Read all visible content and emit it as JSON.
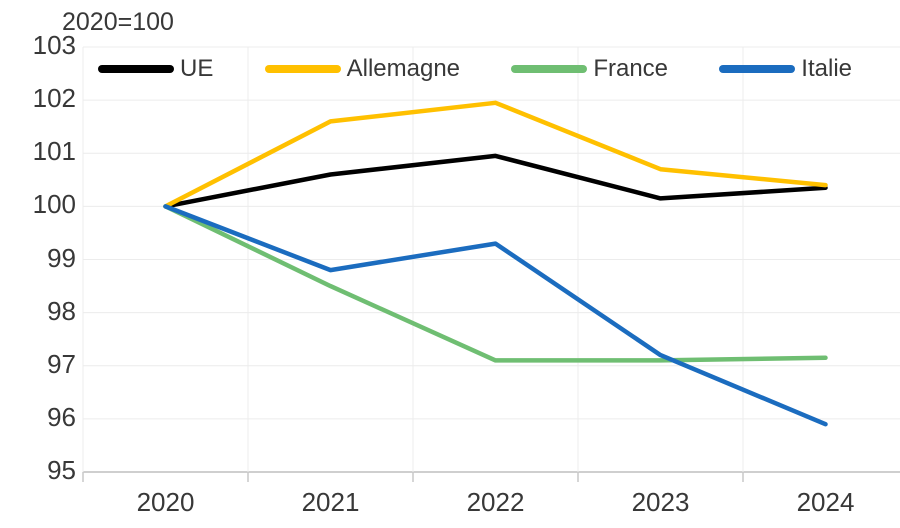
{
  "chart": {
    "note": "2020=100"
  },
  "chart_data": {
    "type": "line",
    "title": "2020=100",
    "x": [
      2020,
      2021,
      2022,
      2023,
      2024
    ],
    "x_tick_labels": [
      "2020",
      "2021",
      "2022",
      "2023",
      "2024"
    ],
    "ylim": [
      95,
      103
    ],
    "y_ticks": [
      95,
      96,
      97,
      98,
      99,
      100,
      101,
      102,
      103
    ],
    "grid": true,
    "legend_position": "top-inside",
    "series": [
      {
        "name": "UE",
        "color": "#000000",
        "values": [
          100,
          100.6,
          100.95,
          100.15,
          100.35
        ]
      },
      {
        "name": "Allemagne",
        "color": "#FFC000",
        "values": [
          100,
          101.6,
          101.95,
          100.7,
          100.4
        ]
      },
      {
        "name": "France",
        "color": "#6FBE72",
        "values": [
          100,
          98.5,
          97.1,
          97.1,
          97.15
        ]
      },
      {
        "name": "Italie",
        "color": "#1B6CBF",
        "values": [
          100,
          98.8,
          99.3,
          97.2,
          95.9
        ]
      }
    ]
  },
  "colors": {
    "grid": "#ECECEC",
    "axis": "#BFBFBF",
    "tick": "#C9C9C9",
    "text": "#383838",
    "background": "#FFFFFF"
  }
}
